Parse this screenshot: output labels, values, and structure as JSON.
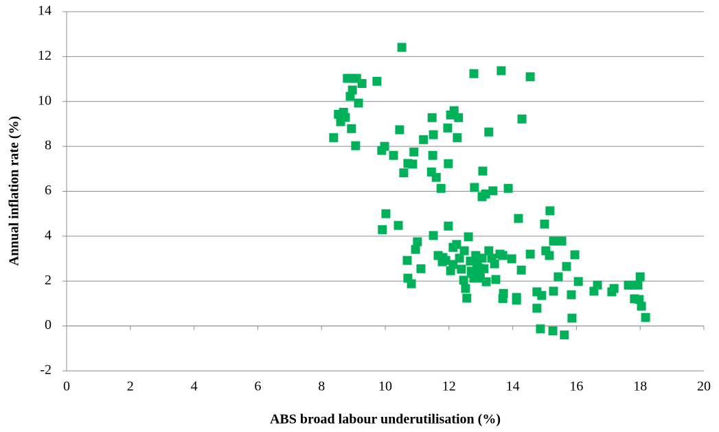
{
  "chart_data": {
    "type": "scatter",
    "x_label": "ABS broad labour underutilisation (%)",
    "y_label": "Annual inflation rate (%)",
    "xlim": [
      0,
      20
    ],
    "xticks": [
      0,
      2,
      4,
      6,
      8,
      10,
      12,
      14,
      16,
      18,
      20
    ],
    "ylim": [
      -2,
      14
    ],
    "yticks": [
      -2,
      0,
      2,
      4,
      6,
      8,
      10,
      12,
      14
    ],
    "grid": true,
    "series": [
      {
        "color": "#00b15a",
        "x": [
          8.38,
          8.53,
          8.6,
          8.69,
          8.75,
          8.81,
          8.97,
          9.1,
          8.9,
          8.97,
          8.94,
          9.07,
          9.16,
          9.27,
          9.74,
          10.52,
          9.89,
          9.98,
          10.26,
          10.45,
          10.58,
          10.71,
          10.86,
          10.9,
          11.2,
          11.47,
          11.51,
          11.49,
          11.45,
          11.6,
          11.75,
          11.96,
          11.98,
          12.05,
          12.16,
          12.26,
          12.3,
          12.78,
          12.8,
          13.06,
          13.15,
          13.04,
          13.25,
          13.38,
          13.64,
          13.86,
          14.29,
          14.55,
          9.91,
          10.02,
          10.41,
          10.69,
          10.71,
          10.82,
          10.95,
          11.01,
          11.12,
          11.51,
          11.66,
          11.81,
          11.9,
          11.98,
          12.05,
          12.13,
          12.24,
          12.33,
          12.39,
          12.46,
          12.56,
          12.61,
          12.67,
          12.74,
          12.84,
          12.93,
          13.04,
          13.1,
          13.17,
          13.25,
          13.34,
          13.43,
          13.47,
          13.6,
          13.69,
          13.71,
          13.69,
          13.97,
          14.12,
          14.12,
          14.18,
          14.27,
          14.55,
          14.76,
          14.76,
          14.87,
          14.91,
          15.0,
          15.04,
          15.17,
          15.15,
          15.28,
          15.28,
          15.26,
          15.43,
          15.54,
          15.62,
          15.69,
          15.84,
          15.86,
          15.95,
          16.06,
          16.55,
          16.66,
          17.11,
          17.18,
          17.63,
          17.76,
          17.82,
          17.93,
          18.0,
          17.97,
          18.04,
          18.17,
          12.48,
          12.7,
          12.88,
          12.98,
          12.52,
          12.78,
          12.13,
          11.79,
          12.98
        ],
        "values": [
          8.39,
          9.43,
          9.1,
          9.52,
          9.29,
          11.03,
          11.03,
          11.03,
          10.23,
          10.51,
          8.79,
          8.03,
          9.93,
          10.8,
          10.9,
          12.41,
          7.82,
          8.0,
          7.6,
          8.74,
          6.82,
          7.24,
          7.21,
          7.75,
          8.3,
          9.28,
          8.52,
          7.6,
          6.86,
          6.62,
          6.13,
          8.82,
          7.23,
          9.4,
          9.59,
          8.39,
          9.28,
          11.24,
          6.17,
          6.9,
          5.88,
          5.76,
          8.64,
          6.02,
          11.37,
          6.13,
          9.22,
          11.1,
          4.29,
          5.0,
          4.48,
          2.92,
          2.13,
          1.88,
          3.41,
          3.75,
          2.55,
          4.03,
          3.14,
          3.05,
          2.92,
          4.45,
          2.46,
          3.5,
          3.63,
          3.02,
          2.53,
          2.04,
          1.24,
          3.97,
          2.89,
          2.34,
          3.14,
          2.59,
          3.02,
          2.55,
          1.97,
          3.35,
          3.02,
          2.77,
          2.07,
          3.2,
          3.14,
          1.45,
          1.22,
          2.99,
          1.15,
          1.27,
          4.79,
          2.49,
          3.2,
          1.52,
          0.79,
          -0.13,
          1.36,
          4.54,
          3.35,
          5.13,
          3.14,
          3.78,
          1.55,
          -0.22,
          2.19,
          3.78,
          -0.4,
          2.65,
          1.39,
          0.35,
          3.17,
          1.98,
          1.55,
          1.82,
          1.52,
          1.67,
          1.82,
          1.82,
          1.21,
          1.82,
          2.19,
          1.18,
          0.88,
          0.38,
          3.35,
          2.44,
          2.8,
          2.44,
          1.67,
          2.13,
          2.74,
          2.86,
          2.13
        ]
      }
    ]
  }
}
